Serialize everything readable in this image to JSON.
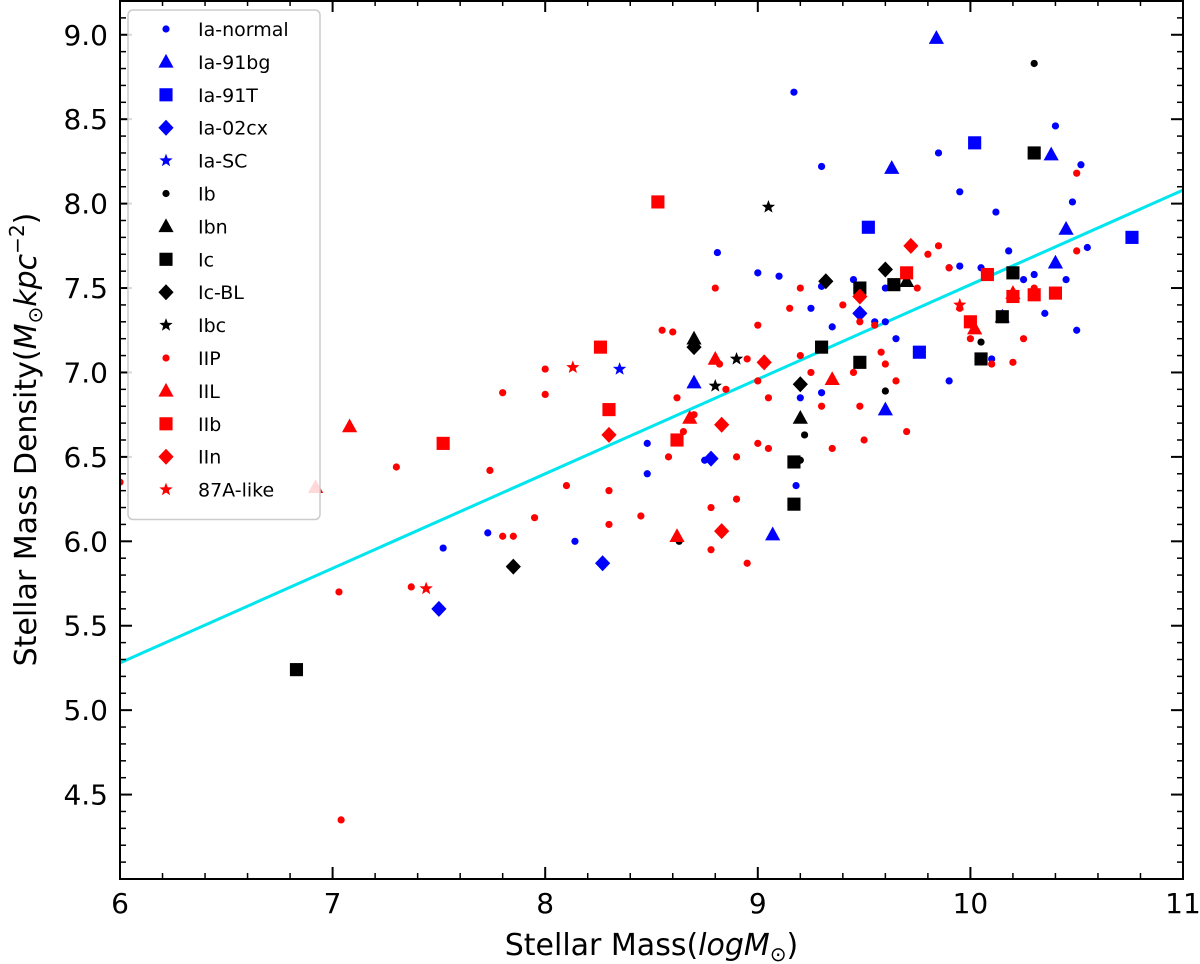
{
  "chart_data": {
    "type": "scatter",
    "xlabel_main": "Stellar Mass(",
    "xlabel_italic": "logM",
    "xlabel_sub": "⊙",
    "xlabel_end": ")",
    "ylabel_main": "Stellar Mass Density(",
    "ylabel_italic1": "M",
    "ylabel_sub": "⊙",
    "ylabel_italic2": "kpc",
    "ylabel_sup": "−2",
    "ylabel_end": ")",
    "xlim": [
      6,
      11
    ],
    "ylim": [
      4.0,
      9.2
    ],
    "xticks": [
      6,
      7,
      8,
      9,
      10,
      11
    ],
    "xtick_labels": [
      "6",
      "7",
      "8",
      "9",
      "10",
      "11"
    ],
    "yticks": [
      4.5,
      5.0,
      5.5,
      6.0,
      6.5,
      7.0,
      7.5,
      8.0,
      8.5,
      9.0
    ],
    "ytick_labels": [
      "4.5",
      "5.0",
      "5.5",
      "6.0",
      "6.5",
      "7.0",
      "7.5",
      "8.0",
      "8.5",
      "9.0"
    ],
    "fit_line": {
      "x": [
        6,
        11
      ],
      "y": [
        5.28,
        8.08
      ],
      "color": "#00e5ee"
    },
    "legend_position": "top-left",
    "series": [
      {
        "name": "Ia-normal",
        "color": "#0000ff",
        "marker": "dot",
        "size": "small",
        "points": [
          [
            9.17,
            8.66
          ],
          [
            9.3,
            8.22
          ],
          [
            9.85,
            8.3
          ],
          [
            9.95,
            8.07
          ],
          [
            10.12,
            7.95
          ],
          [
            10.4,
            8.46
          ],
          [
            10.52,
            8.23
          ],
          [
            10.48,
            8.01
          ],
          [
            8.81,
            7.71
          ],
          [
            9.0,
            7.59
          ],
          [
            9.1,
            7.57
          ],
          [
            9.3,
            7.51
          ],
          [
            9.45,
            7.55
          ],
          [
            9.6,
            7.5
          ],
          [
            9.7,
            7.58
          ],
          [
            9.9,
            7.62
          ],
          [
            10.05,
            7.62
          ],
          [
            10.2,
            7.6
          ],
          [
            10.3,
            7.58
          ],
          [
            10.45,
            7.55
          ],
          [
            10.55,
            7.74
          ],
          [
            9.25,
            7.38
          ],
          [
            9.35,
            7.27
          ],
          [
            9.55,
            7.3
          ],
          [
            9.65,
            7.2
          ],
          [
            9.9,
            6.95
          ],
          [
            10.1,
            7.08
          ],
          [
            10.35,
            7.35
          ],
          [
            10.5,
            7.25
          ],
          [
            9.2,
            6.85
          ],
          [
            9.18,
            6.48
          ],
          [
            9.18,
            6.33
          ],
          [
            9.3,
            6.88
          ],
          [
            8.75,
            6.48
          ],
          [
            8.48,
            6.58
          ],
          [
            8.48,
            6.4
          ],
          [
            8.14,
            6.0
          ],
          [
            7.73,
            6.05
          ],
          [
            7.52,
            5.96
          ],
          [
            9.6,
            7.3
          ],
          [
            9.95,
            7.63
          ],
          [
            10.18,
            7.72
          ],
          [
            10.25,
            7.55
          ]
        ]
      },
      {
        "name": "Ia-91bg",
        "color": "#0000ff",
        "marker": "triangle",
        "size": "large",
        "points": [
          [
            9.84,
            8.98
          ],
          [
            9.63,
            8.21
          ],
          [
            10.38,
            8.29
          ],
          [
            10.45,
            7.85
          ],
          [
            10.4,
            7.65
          ],
          [
            10.15,
            7.33
          ],
          [
            8.7,
            6.94
          ],
          [
            9.6,
            6.78
          ],
          [
            9.07,
            6.04
          ]
        ]
      },
      {
        "name": "Ia-91T",
        "color": "#0000ff",
        "marker": "square",
        "size": "large",
        "points": [
          [
            10.02,
            8.36
          ],
          [
            9.52,
            7.86
          ],
          [
            10.76,
            7.8
          ],
          [
            9.76,
            7.12
          ]
        ]
      },
      {
        "name": "Ia-02cx",
        "color": "#0000ff",
        "marker": "diamond",
        "size": "large",
        "points": [
          [
            9.48,
            7.35
          ],
          [
            8.78,
            6.49
          ],
          [
            8.27,
            5.87
          ],
          [
            7.5,
            5.6
          ]
        ]
      },
      {
        "name": "Ia-SC",
        "color": "#0000ff",
        "marker": "star",
        "size": "medium",
        "points": [
          [
            8.35,
            7.02
          ]
        ]
      },
      {
        "name": "Ib",
        "color": "#000000",
        "marker": "dot",
        "size": "small",
        "points": [
          [
            10.3,
            8.83
          ],
          [
            10.05,
            7.18
          ],
          [
            9.22,
            6.63
          ],
          [
            9.2,
            6.48
          ],
          [
            9.6,
            6.89
          ],
          [
            8.63,
            6.0
          ]
        ]
      },
      {
        "name": "Ibn",
        "color": "#000000",
        "marker": "triangle",
        "size": "large",
        "points": [
          [
            9.7,
            7.54
          ],
          [
            8.7,
            7.2
          ],
          [
            9.2,
            6.73
          ]
        ]
      },
      {
        "name": "Ic",
        "color": "#000000",
        "marker": "square",
        "size": "large",
        "points": [
          [
            10.3,
            8.3
          ],
          [
            9.48,
            7.5
          ],
          [
            9.64,
            7.52
          ],
          [
            10.2,
            7.59
          ],
          [
            10.15,
            7.33
          ],
          [
            9.3,
            7.15
          ],
          [
            9.48,
            7.06
          ],
          [
            10.05,
            7.08
          ],
          [
            9.17,
            6.47
          ],
          [
            9.17,
            6.22
          ],
          [
            6.83,
            5.24
          ]
        ]
      },
      {
        "name": "Ic-BL",
        "color": "#000000",
        "marker": "diamond",
        "size": "large",
        "points": [
          [
            9.6,
            7.61
          ],
          [
            9.32,
            7.54
          ],
          [
            8.7,
            7.15
          ],
          [
            9.2,
            6.93
          ],
          [
            7.85,
            5.85
          ]
        ]
      },
      {
        "name": "Ibc",
        "color": "#000000",
        "marker": "star",
        "size": "medium",
        "points": [
          [
            9.05,
            7.98
          ],
          [
            8.9,
            7.08
          ],
          [
            8.8,
            6.92
          ]
        ]
      },
      {
        "name": "IIP",
        "color": "#ff0000",
        "marker": "dot",
        "size": "small",
        "points": [
          [
            7.04,
            4.35
          ],
          [
            7.03,
            5.7
          ],
          [
            7.37,
            5.73
          ],
          [
            7.3,
            6.44
          ],
          [
            7.74,
            6.42
          ],
          [
            7.8,
            6.88
          ],
          [
            8.0,
            7.02
          ],
          [
            8.0,
            6.87
          ],
          [
            8.1,
            6.33
          ],
          [
            7.95,
            6.14
          ],
          [
            7.8,
            6.03
          ],
          [
            7.85,
            6.03
          ],
          [
            8.45,
            6.15
          ],
          [
            8.3,
            6.3
          ],
          [
            8.3,
            6.1
          ],
          [
            8.55,
            7.25
          ],
          [
            8.6,
            7.24
          ],
          [
            8.62,
            6.85
          ],
          [
            8.7,
            6.75
          ],
          [
            8.78,
            6.2
          ],
          [
            8.78,
            5.95
          ],
          [
            8.8,
            7.5
          ],
          [
            8.82,
            7.05
          ],
          [
            8.85,
            6.9
          ],
          [
            8.9,
            6.5
          ],
          [
            8.9,
            6.25
          ],
          [
            8.95,
            5.87
          ],
          [
            9.0,
            7.28
          ],
          [
            9.0,
            6.95
          ],
          [
            9.05,
            6.85
          ],
          [
            9.05,
            6.55
          ],
          [
            9.15,
            7.38
          ],
          [
            9.2,
            7.5
          ],
          [
            9.2,
            7.1
          ],
          [
            9.25,
            7.0
          ],
          [
            9.3,
            6.8
          ],
          [
            9.35,
            6.55
          ],
          [
            9.4,
            7.4
          ],
          [
            9.45,
            7.0
          ],
          [
            9.48,
            7.3
          ],
          [
            9.48,
            6.8
          ],
          [
            9.5,
            6.6
          ],
          [
            9.55,
            7.28
          ],
          [
            9.6,
            7.05
          ],
          [
            9.65,
            6.95
          ],
          [
            9.7,
            6.65
          ],
          [
            9.75,
            7.5
          ],
          [
            9.8,
            7.7
          ],
          [
            9.85,
            7.75
          ],
          [
            9.9,
            7.62
          ],
          [
            9.95,
            7.38
          ],
          [
            10.0,
            7.2
          ],
          [
            10.1,
            7.05
          ],
          [
            10.2,
            7.06
          ],
          [
            10.25,
            7.2
          ],
          [
            10.3,
            7.5
          ],
          [
            10.5,
            8.18
          ],
          [
            10.5,
            7.72
          ],
          [
            8.58,
            6.5
          ],
          [
            8.65,
            6.65
          ],
          [
            8.95,
            7.08
          ],
          [
            9.0,
            6.58
          ],
          [
            6.0,
            6.35
          ],
          [
            9.58,
            7.12
          ]
        ]
      },
      {
        "name": "IIL",
        "color": "#ff0000",
        "marker": "triangle",
        "size": "large",
        "points": [
          [
            7.08,
            6.68
          ],
          [
            6.92,
            6.32
          ],
          [
            8.8,
            7.08
          ],
          [
            8.68,
            6.73
          ],
          [
            8.62,
            6.03
          ],
          [
            9.35,
            6.96
          ],
          [
            10.02,
            7.26
          ],
          [
            10.2,
            7.47
          ]
        ]
      },
      {
        "name": "IIb",
        "color": "#ff0000",
        "marker": "square",
        "size": "large",
        "points": [
          [
            8.53,
            8.01
          ],
          [
            8.26,
            7.15
          ],
          [
            8.3,
            6.78
          ],
          [
            8.62,
            6.6
          ],
          [
            7.52,
            6.58
          ],
          [
            9.7,
            7.59
          ],
          [
            10.0,
            7.3
          ],
          [
            10.2,
            7.45
          ],
          [
            10.3,
            7.46
          ],
          [
            10.4,
            7.47
          ],
          [
            10.08,
            7.58
          ]
        ]
      },
      {
        "name": "IIn",
        "color": "#ff0000",
        "marker": "diamond",
        "size": "large",
        "points": [
          [
            8.3,
            6.63
          ],
          [
            8.83,
            6.69
          ],
          [
            8.83,
            6.06
          ],
          [
            9.03,
            7.06
          ],
          [
            9.48,
            7.45
          ],
          [
            9.72,
            7.75
          ]
        ]
      },
      {
        "name": "87A-like",
        "color": "#ff0000",
        "marker": "star",
        "size": "medium",
        "points": [
          [
            8.13,
            7.03
          ],
          [
            7.44,
            5.72
          ],
          [
            9.95,
            7.4
          ]
        ]
      }
    ]
  }
}
